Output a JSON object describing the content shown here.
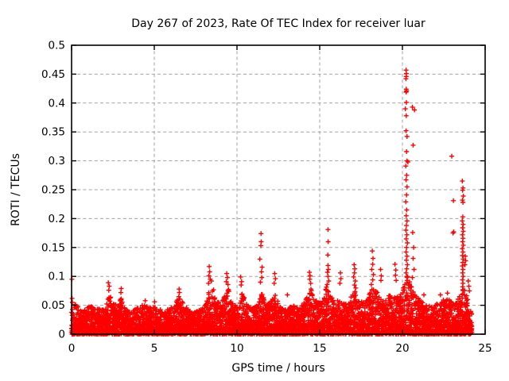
{
  "chart_data": {
    "type": "scatter",
    "title": "Day 267 of 2023, Rate Of TEC Index for receiver luar",
    "xlabel": "GPS time / hours",
    "ylabel": "ROTI / TECUs",
    "xlim": [
      0,
      25
    ],
    "ylim": [
      0,
      0.5
    ],
    "xticks": [
      0,
      5,
      10,
      15,
      20,
      25
    ],
    "xtick_labels": [
      "0",
      "5",
      "10",
      "15",
      "20",
      "25"
    ],
    "yticks": [
      0,
      0.05,
      0.1,
      0.15,
      0.2,
      0.25,
      0.3,
      0.35,
      0.4,
      0.45,
      0.5
    ],
    "ytick_labels": [
      "0",
      "0.05",
      "0.1",
      "0.15",
      "0.2",
      "0.25",
      "0.3",
      "0.35",
      "0.4",
      "0.45",
      "0.5"
    ],
    "grid": {
      "style": "dashed",
      "color": "#a0a0a0"
    },
    "legend": "none",
    "marker": {
      "shape": "plus",
      "color": "#ff0000",
      "size": 7
    },
    "data_hours_range": [
      0,
      24.2
    ],
    "band": {
      "description": "dense ROTI noise band hugging zero for all 24 hours; upper envelope in TECUs sampled vs GPS hour",
      "points_per_hour": 220,
      "y_power": 1.7,
      "envelope": [
        [
          0.0,
          0.058
        ],
        [
          0.3,
          0.05
        ],
        [
          0.6,
          0.042
        ],
        [
          0.9,
          0.045
        ],
        [
          1.2,
          0.05
        ],
        [
          1.5,
          0.047
        ],
        [
          1.8,
          0.042
        ],
        [
          2.1,
          0.052
        ],
        [
          2.3,
          0.07
        ],
        [
          2.5,
          0.054
        ],
        [
          2.8,
          0.05
        ],
        [
          3.0,
          0.064
        ],
        [
          3.2,
          0.047
        ],
        [
          3.5,
          0.04
        ],
        [
          3.8,
          0.044
        ],
        [
          4.1,
          0.048
        ],
        [
          4.4,
          0.052
        ],
        [
          4.7,
          0.046
        ],
        [
          5.0,
          0.05
        ],
        [
          5.3,
          0.044
        ],
        [
          5.6,
          0.04
        ],
        [
          5.9,
          0.045
        ],
        [
          6.2,
          0.05
        ],
        [
          6.5,
          0.066
        ],
        [
          6.8,
          0.05
        ],
        [
          7.1,
          0.042
        ],
        [
          7.4,
          0.038
        ],
        [
          7.7,
          0.042
        ],
        [
          8.0,
          0.048
        ],
        [
          8.3,
          0.078
        ],
        [
          8.5,
          0.088
        ],
        [
          8.7,
          0.062
        ],
        [
          9.0,
          0.052
        ],
        [
          9.3,
          0.068
        ],
        [
          9.5,
          0.08
        ],
        [
          9.7,
          0.054
        ],
        [
          10.0,
          0.048
        ],
        [
          10.3,
          0.072
        ],
        [
          10.6,
          0.052
        ],
        [
          10.9,
          0.044
        ],
        [
          11.2,
          0.05
        ],
        [
          11.5,
          0.078
        ],
        [
          11.8,
          0.054
        ],
        [
          12.1,
          0.058
        ],
        [
          12.3,
          0.075
        ],
        [
          12.5,
          0.054
        ],
        [
          12.8,
          0.042
        ],
        [
          13.1,
          0.045
        ],
        [
          13.4,
          0.05
        ],
        [
          13.7,
          0.046
        ],
        [
          14.0,
          0.052
        ],
        [
          14.3,
          0.068
        ],
        [
          14.5,
          0.085
        ],
        [
          14.8,
          0.058
        ],
        [
          15.1,
          0.054
        ],
        [
          15.4,
          0.082
        ],
        [
          15.6,
          0.072
        ],
        [
          15.9,
          0.054
        ],
        [
          16.2,
          0.062
        ],
        [
          16.5,
          0.054
        ],
        [
          16.8,
          0.058
        ],
        [
          17.1,
          0.08
        ],
        [
          17.4,
          0.062
        ],
        [
          17.7,
          0.054
        ],
        [
          18.0,
          0.072
        ],
        [
          18.3,
          0.082
        ],
        [
          18.6,
          0.068
        ],
        [
          18.9,
          0.058
        ],
        [
          19.2,
          0.068
        ],
        [
          19.5,
          0.078
        ],
        [
          19.8,
          0.062
        ],
        [
          20.1,
          0.085
        ],
        [
          20.3,
          0.105
        ],
        [
          20.5,
          0.085
        ],
        [
          20.8,
          0.068
        ],
        [
          21.1,
          0.058
        ],
        [
          21.4,
          0.052
        ],
        [
          21.7,
          0.048
        ],
        [
          22.0,
          0.054
        ],
        [
          22.3,
          0.058
        ],
        [
          22.6,
          0.062
        ],
        [
          22.9,
          0.058
        ],
        [
          23.2,
          0.054
        ],
        [
          23.5,
          0.068
        ],
        [
          23.7,
          0.088
        ],
        [
          23.9,
          0.066
        ],
        [
          24.05,
          0.048
        ],
        [
          24.2,
          0.038
        ]
      ]
    },
    "spikes": [
      [
        0.02,
        0.095
      ],
      [
        0.03,
        0.062
      ],
      [
        0.05,
        0.055
      ],
      [
        2.22,
        0.089
      ],
      [
        2.28,
        0.083
      ],
      [
        2.25,
        0.076
      ],
      [
        3.0,
        0.079
      ],
      [
        2.98,
        0.072
      ],
      [
        4.45,
        0.058
      ],
      [
        5.02,
        0.056
      ],
      [
        6.5,
        0.078
      ],
      [
        6.52,
        0.072
      ],
      [
        6.48,
        0.065
      ],
      [
        8.32,
        0.117
      ],
      [
        8.35,
        0.108
      ],
      [
        8.3,
        0.101
      ],
      [
        8.38,
        0.095
      ],
      [
        8.45,
        0.092
      ],
      [
        8.28,
        0.088
      ],
      [
        9.38,
        0.105
      ],
      [
        9.42,
        0.098
      ],
      [
        9.35,
        0.091
      ],
      [
        9.45,
        0.086
      ],
      [
        10.22,
        0.099
      ],
      [
        10.28,
        0.091
      ],
      [
        10.25,
        0.085
      ],
      [
        11.45,
        0.174
      ],
      [
        11.46,
        0.16
      ],
      [
        11.44,
        0.153
      ],
      [
        11.38,
        0.13
      ],
      [
        11.52,
        0.116
      ],
      [
        11.48,
        0.108
      ],
      [
        11.5,
        0.098
      ],
      [
        11.42,
        0.09
      ],
      [
        12.28,
        0.105
      ],
      [
        12.32,
        0.096
      ],
      [
        12.25,
        0.088
      ],
      [
        13.05,
        0.068
      ],
      [
        14.38,
        0.107
      ],
      [
        14.42,
        0.101
      ],
      [
        14.4,
        0.095
      ],
      [
        14.45,
        0.088
      ],
      [
        15.5,
        0.181
      ],
      [
        15.51,
        0.16
      ],
      [
        15.49,
        0.137
      ],
      [
        15.5,
        0.119
      ],
      [
        15.52,
        0.112
      ],
      [
        15.47,
        0.107
      ],
      [
        15.5,
        0.1
      ],
      [
        15.55,
        0.092
      ],
      [
        15.45,
        0.086
      ],
      [
        16.25,
        0.106
      ],
      [
        16.28,
        0.096
      ],
      [
        16.22,
        0.088
      ],
      [
        17.08,
        0.12
      ],
      [
        17.12,
        0.113
      ],
      [
        17.1,
        0.106
      ],
      [
        17.05,
        0.099
      ],
      [
        17.15,
        0.092
      ],
      [
        17.1,
        0.085
      ],
      [
        17.18,
        0.08
      ],
      [
        18.18,
        0.144
      ],
      [
        18.22,
        0.131
      ],
      [
        18.2,
        0.121
      ],
      [
        18.15,
        0.112
      ],
      [
        18.25,
        0.103
      ],
      [
        18.2,
        0.094
      ],
      [
        18.12,
        0.086
      ],
      [
        18.68,
        0.112
      ],
      [
        18.72,
        0.101
      ],
      [
        18.7,
        0.093
      ],
      [
        19.55,
        0.121
      ],
      [
        19.6,
        0.111
      ],
      [
        19.58,
        0.102
      ],
      [
        19.62,
        0.093
      ],
      [
        20.22,
        0.457
      ],
      [
        20.24,
        0.451
      ],
      [
        20.23,
        0.446
      ],
      [
        20.21,
        0.442
      ],
      [
        20.23,
        0.424
      ],
      [
        20.25,
        0.421
      ],
      [
        20.22,
        0.419
      ],
      [
        20.24,
        0.401
      ],
      [
        20.18,
        0.39
      ],
      [
        20.6,
        0.393
      ],
      [
        20.73,
        0.388
      ],
      [
        20.23,
        0.378
      ],
      [
        20.22,
        0.352
      ],
      [
        20.28,
        0.342
      ],
      [
        20.65,
        0.327
      ],
      [
        20.25,
        0.316
      ],
      [
        20.28,
        0.3
      ],
      [
        20.33,
        0.298
      ],
      [
        20.2,
        0.291
      ],
      [
        20.26,
        0.275
      ],
      [
        20.22,
        0.267
      ],
      [
        20.28,
        0.255
      ],
      [
        20.25,
        0.241
      ],
      [
        20.2,
        0.229
      ],
      [
        20.26,
        0.215
      ],
      [
        20.23,
        0.205
      ],
      [
        20.28,
        0.196
      ],
      [
        20.24,
        0.188
      ],
      [
        20.21,
        0.18
      ],
      [
        20.27,
        0.172
      ],
      [
        20.23,
        0.165
      ],
      [
        20.3,
        0.158
      ],
      [
        20.25,
        0.15
      ],
      [
        20.22,
        0.142
      ],
      [
        20.28,
        0.135
      ],
      [
        20.24,
        0.128
      ],
      [
        20.3,
        0.12
      ],
      [
        20.26,
        0.113
      ],
      [
        20.22,
        0.106
      ],
      [
        20.28,
        0.1
      ],
      [
        20.62,
        0.176
      ],
      [
        20.68,
        0.15
      ],
      [
        20.65,
        0.131
      ],
      [
        20.7,
        0.112
      ],
      [
        20.6,
        0.098
      ],
      [
        21.3,
        0.068
      ],
      [
        22.3,
        0.068
      ],
      [
        22.72,
        0.071
      ],
      [
        22.98,
        0.308
      ],
      [
        23.08,
        0.231
      ],
      [
        23.1,
        0.177
      ],
      [
        23.06,
        0.175
      ],
      [
        23.62,
        0.265
      ],
      [
        23.66,
        0.253
      ],
      [
        23.64,
        0.249
      ],
      [
        23.68,
        0.239
      ],
      [
        23.63,
        0.232
      ],
      [
        23.66,
        0.228
      ],
      [
        23.65,
        0.203
      ],
      [
        23.62,
        0.196
      ],
      [
        23.67,
        0.19
      ],
      [
        23.64,
        0.184
      ],
      [
        23.68,
        0.178
      ],
      [
        23.63,
        0.172
      ],
      [
        23.66,
        0.166
      ],
      [
        23.64,
        0.16
      ],
      [
        23.68,
        0.154
      ],
      [
        23.62,
        0.148
      ],
      [
        23.66,
        0.142
      ],
      [
        23.63,
        0.136
      ],
      [
        23.67,
        0.13
      ],
      [
        23.65,
        0.124
      ],
      [
        23.62,
        0.118
      ],
      [
        23.66,
        0.112
      ],
      [
        23.64,
        0.106
      ],
      [
        23.67,
        0.1
      ],
      [
        23.63,
        0.094
      ],
      [
        23.66,
        0.088
      ],
      [
        23.64,
        0.082
      ],
      [
        23.68,
        0.076
      ],
      [
        23.8,
        0.135
      ],
      [
        23.82,
        0.127
      ],
      [
        23.78,
        0.12
      ],
      [
        23.98,
        0.092
      ],
      [
        24.02,
        0.083
      ],
      [
        24.05,
        0.075
      ]
    ]
  }
}
